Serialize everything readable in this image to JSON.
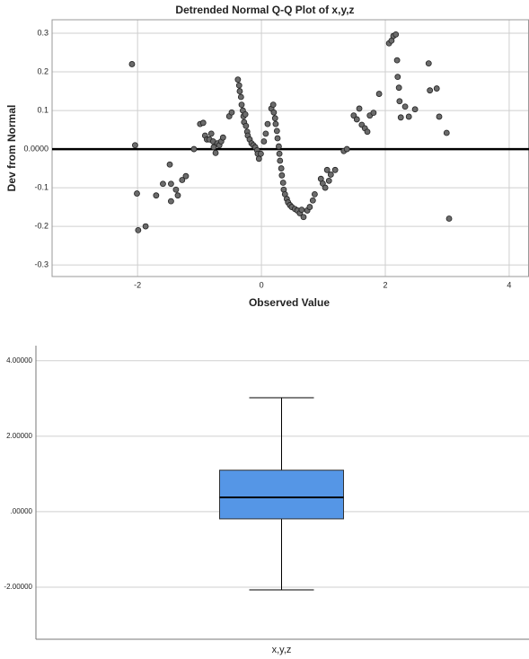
{
  "chart_data": [
    {
      "type": "scatter",
      "title": "Detrended Normal Q-Q Plot of x,y,z",
      "x_label": "Observed Value",
      "y_label": "Dev from Normal",
      "color": "#6b6b6b",
      "grid": true,
      "refline": 0,
      "xlim": [
        -3.38,
        4.32
      ],
      "xticks": [
        -2,
        0,
        2,
        4
      ],
      "ylim": [
        -0.33,
        0.335
      ],
      "yticks": [
        0.3,
        0.2,
        0.1,
        {
          "value": 0,
          "label": "0.0000"
        },
        -0.1,
        -0.2,
        -0.3
      ],
      "x": [
        -2.09,
        -2.04,
        -2.01,
        -1.99,
        -1.87,
        -1.7,
        -1.59,
        -1.48,
        -1.46,
        -1.46,
        -1.38,
        -1.35,
        -1.28,
        -1.22,
        -1.09,
        -0.99,
        -0.94,
        -0.91,
        -0.88,
        -0.84,
        -0.81,
        -0.78,
        -0.77,
        -0.74,
        -0.71,
        -0.68,
        -0.65,
        -0.62,
        -0.52,
        -0.48,
        -0.38,
        -0.36,
        -0.35,
        -0.33,
        -0.32,
        -0.3,
        -0.29,
        -0.28,
        -0.26,
        -0.25,
        -0.23,
        -0.22,
        -0.19,
        -0.16,
        -0.13,
        -0.1,
        -0.07,
        -0.06,
        -0.04,
        -0.01,
        0.04,
        0.07,
        0.1,
        0.16,
        0.19,
        0.2,
        0.22,
        0.23,
        0.25,
        0.26,
        0.28,
        0.29,
        0.3,
        0.32,
        0.33,
        0.35,
        0.36,
        0.38,
        0.41,
        0.43,
        0.46,
        0.49,
        0.54,
        0.58,
        0.62,
        0.65,
        0.68,
        0.74,
        0.78,
        0.83,
        0.86,
        0.96,
        0.99,
        1.03,
        1.06,
        1.09,
        1.12,
        1.19,
        1.33,
        1.38,
        1.49,
        1.54,
        1.58,
        1.62,
        1.67,
        1.71,
        1.75,
        1.81,
        1.9,
        2.06,
        2.1,
        2.13,
        2.17,
        2.19,
        2.2,
        2.22,
        2.23,
        2.25,
        2.32,
        2.38,
        2.48,
        2.7,
        2.72,
        2.83,
        2.87,
        2.99,
        3.03
      ],
      "values": [
        0.22,
        0.01,
        -0.115,
        -0.21,
        -0.2,
        -0.12,
        -0.09,
        -0.04,
        -0.09,
        -0.135,
        -0.105,
        -0.12,
        -0.08,
        -0.07,
        0.0,
        0.065,
        0.068,
        0.035,
        0.025,
        0.025,
        0.04,
        0.02,
        0.005,
        -0.01,
        0.015,
        0.01,
        0.02,
        0.03,
        0.085,
        0.095,
        0.18,
        0.165,
        0.15,
        0.135,
        0.115,
        0.1,
        0.085,
        0.07,
        0.09,
        0.06,
        0.045,
        0.035,
        0.025,
        0.015,
        0.01,
        0.005,
        -0.003,
        -0.012,
        -0.025,
        -0.012,
        0.02,
        0.04,
        0.065,
        0.105,
        0.115,
        0.095,
        0.08,
        0.065,
        0.047,
        0.028,
        0.007,
        -0.012,
        -0.03,
        -0.05,
        -0.068,
        -0.087,
        -0.105,
        -0.117,
        -0.129,
        -0.138,
        -0.145,
        -0.15,
        -0.155,
        -0.159,
        -0.166,
        -0.157,
        -0.176,
        -0.159,
        -0.15,
        -0.133,
        -0.117,
        -0.077,
        -0.089,
        -0.1,
        -0.054,
        -0.082,
        -0.066,
        -0.054,
        -0.005,
        0.0,
        0.087,
        0.077,
        0.105,
        0.063,
        0.054,
        0.045,
        0.087,
        0.094,
        0.143,
        0.274,
        0.281,
        0.293,
        0.297,
        0.23,
        0.187,
        0.159,
        0.124,
        0.082,
        0.11,
        0.084,
        0.103,
        0.222,
        0.152,
        0.157,
        0.084,
        0.042,
        -0.18
      ]
    },
    {
      "type": "box",
      "categories": [
        "x,y,z"
      ],
      "color": "#5596e6",
      "grid": true,
      "ylim": [
        -3.38,
        4.4
      ],
      "yticks": [
        {
          "value": 4,
          "label": "4.00000"
        },
        {
          "value": 2,
          "label": "2.00000"
        },
        {
          "value": 0,
          "label": ".00000"
        },
        {
          "value": -2,
          "label": "-2.00000"
        }
      ],
      "stats": [
        {
          "whislo": -2.07,
          "q1": -0.19,
          "med": 0.38,
          "q3": 1.1,
          "whishi": 3.02
        }
      ]
    }
  ]
}
